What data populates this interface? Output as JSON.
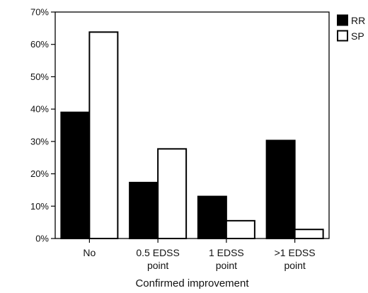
{
  "chart_data": {
    "type": "bar",
    "categories": [
      [
        "No"
      ],
      [
        "0.5 EDSS",
        "point"
      ],
      [
        "1 EDSS",
        "point"
      ],
      [
        ">1 EDSS",
        "point"
      ]
    ],
    "series": [
      {
        "name": "RR",
        "color": "#000000",
        "fill": "#000000",
        "values": [
          39,
          17.3,
          13,
          30.3
        ]
      },
      {
        "name": "SP",
        "color": "#000000",
        "fill": "#ffffff",
        "values": [
          63.8,
          27.7,
          5.5,
          2.8
        ]
      }
    ],
    "yticks": [
      "0%",
      "10%",
      "20%",
      "30%",
      "40%",
      "50%",
      "60%",
      "70%"
    ],
    "ylim": [
      0,
      70
    ],
    "xlabel": "Confirmed improvement",
    "ylabel": "",
    "title": "",
    "grid": false,
    "legend_position": "top-right"
  }
}
